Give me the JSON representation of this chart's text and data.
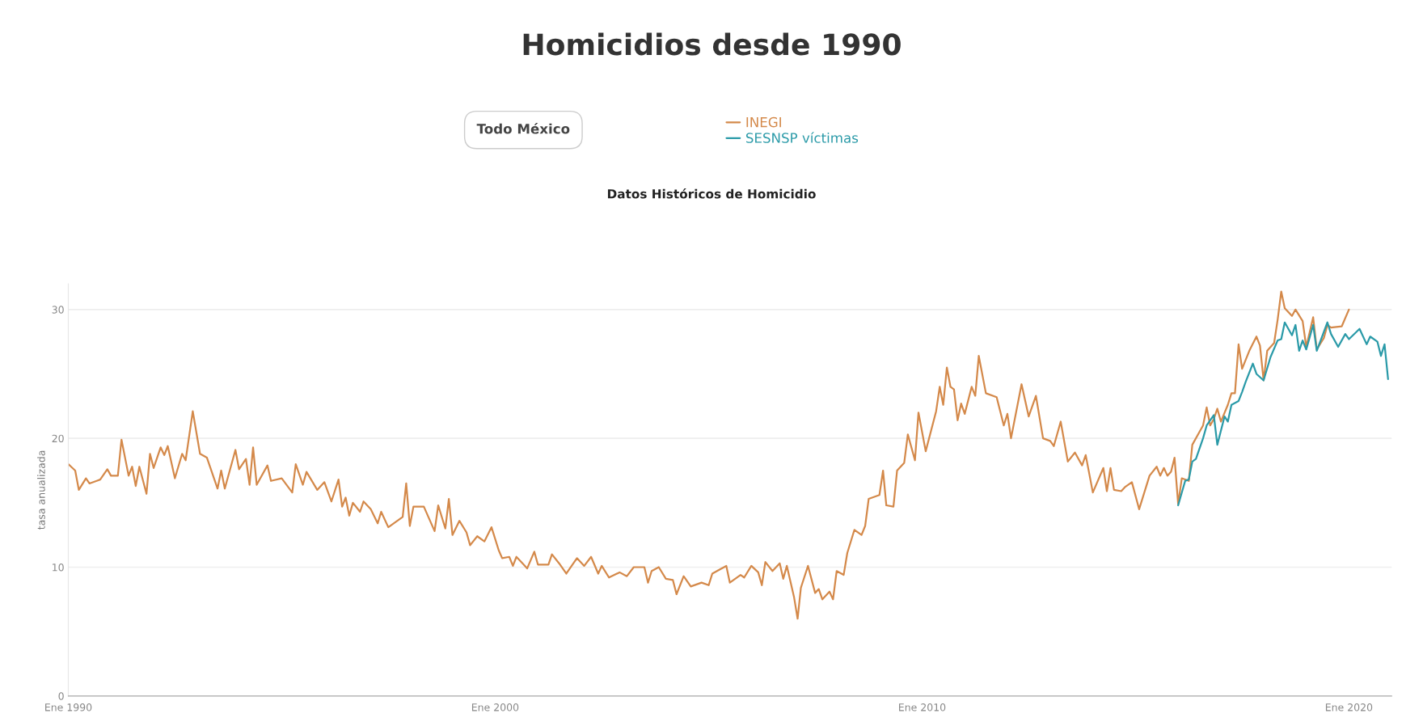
{
  "chart_data": {
    "type": "line",
    "title": "Homicidios desde 1990",
    "subtitle": "Datos Históricos de Homicidio",
    "ylabel": "tasa anualizada",
    "annotations": [
      "Todo México"
    ],
    "series": [
      {
        "name": "INEGI",
        "color": "#d4894a",
        "x": [
          "1990-01",
          "1990-03",
          "1990-04",
          "1990-06",
          "1990-07",
          "1990-09",
          "1990-10",
          "1990-12",
          "1991-01",
          "1991-03",
          "1991-04",
          "1991-06",
          "1991-07",
          "1991-08",
          "1991-09",
          "1991-11",
          "1991-12",
          "1992-01",
          "1992-03",
          "1992-04",
          "1992-05",
          "1992-07",
          "1992-09",
          "1992-10",
          "1992-12",
          "1993-02",
          "1993-04",
          "1993-07",
          "1993-08",
          "1993-09",
          "1993-12",
          "1994-01",
          "1994-03",
          "1994-04",
          "1994-05",
          "1994-06",
          "1994-09",
          "1994-10",
          "1995-01",
          "1995-04",
          "1995-05",
          "1995-07",
          "1995-08",
          "1995-11",
          "1996-01",
          "1996-03",
          "1996-05",
          "1996-06",
          "1996-07",
          "1996-08",
          "1996-09",
          "1996-11",
          "1996-12",
          "1997-02",
          "1997-04",
          "1997-05",
          "1997-07",
          "1997-11",
          "1997-12",
          "1998-01",
          "1998-02",
          "1998-05",
          "1998-08",
          "1998-09",
          "1998-11",
          "1998-12",
          "1999-01",
          "1999-03",
          "1999-05",
          "1999-06",
          "1999-08",
          "1999-10",
          "1999-12",
          "2000-02",
          "2000-03",
          "2000-05",
          "2000-06",
          "2000-07",
          "2000-09",
          "2000-10",
          "2000-12",
          "2001-01",
          "2001-04",
          "2001-05",
          "2001-07",
          "2001-09",
          "2001-11",
          "2001-12",
          "2002-02",
          "2002-04",
          "2002-06",
          "2002-07",
          "2002-09",
          "2002-12",
          "2003-02",
          "2003-04",
          "2003-07",
          "2003-08",
          "2003-09",
          "2003-11",
          "2004-01",
          "2004-03",
          "2004-04",
          "2004-06",
          "2004-08",
          "2004-11",
          "2005-01",
          "2005-02",
          "2005-04",
          "2005-06",
          "2005-07",
          "2005-10",
          "2005-11",
          "2006-01",
          "2006-03",
          "2006-04",
          "2006-05",
          "2006-07",
          "2006-09",
          "2006-10",
          "2006-11",
          "2007-01",
          "2007-02",
          "2007-03",
          "2007-05",
          "2007-07",
          "2007-08",
          "2007-09",
          "2007-11",
          "2007-12",
          "2008-01",
          "2008-03",
          "2008-04",
          "2008-06",
          "2008-08",
          "2008-09",
          "2008-10",
          "2009-01",
          "2009-02",
          "2009-03",
          "2009-05",
          "2009-06",
          "2009-08",
          "2009-09",
          "2009-11",
          "2009-12",
          "2010-02",
          "2010-05",
          "2010-06",
          "2010-07",
          "2010-08",
          "2010-09",
          "2010-10",
          "2010-11",
          "2010-12",
          "2011-01",
          "2011-03",
          "2011-04",
          "2011-05",
          "2011-07",
          "2011-10",
          "2011-12",
          "2012-01",
          "2012-02",
          "2012-05",
          "2012-07",
          "2012-09",
          "2012-11",
          "2013-01",
          "2013-02",
          "2013-04",
          "2013-06",
          "2013-08",
          "2013-10",
          "2013-11",
          "2014-01",
          "2014-04",
          "2014-05",
          "2014-06",
          "2014-07",
          "2014-09",
          "2014-10",
          "2014-12",
          "2015-02",
          "2015-05",
          "2015-07",
          "2015-08",
          "2015-09",
          "2015-10",
          "2015-11",
          "2015-12",
          "2016-01",
          "2016-02",
          "2016-04",
          "2016-05",
          "2016-07",
          "2016-08",
          "2016-09",
          "2016-10",
          "2016-11",
          "2016-12",
          "2017-01",
          "2017-03",
          "2017-04",
          "2017-05",
          "2017-06",
          "2017-07",
          "2017-09",
          "2017-11",
          "2017-12",
          "2018-01",
          "2018-02",
          "2018-04",
          "2018-05",
          "2018-06",
          "2018-07",
          "2018-09",
          "2018-10",
          "2018-12",
          "2019-01",
          "2019-03",
          "2019-04",
          "2019-06",
          "2019-07",
          "2019-08",
          "2019-11",
          "2020-01"
        ],
        "values": [
          18.0,
          17.5,
          16.0,
          16.9,
          16.5,
          16.7,
          16.8,
          17.6,
          17.1,
          17.1,
          19.9,
          17.1,
          17.8,
          16.3,
          17.8,
          15.7,
          18.8,
          17.7,
          19.3,
          18.7,
          19.4,
          16.9,
          18.8,
          18.3,
          22.1,
          18.8,
          18.5,
          16.1,
          17.5,
          16.1,
          19.1,
          17.6,
          18.4,
          16.4,
          19.3,
          16.4,
          17.9,
          16.7,
          16.9,
          15.8,
          18.0,
          16.4,
          17.4,
          16.0,
          16.6,
          15.1,
          16.8,
          14.7,
          15.4,
          14.0,
          15.0,
          14.3,
          15.1,
          14.5,
          13.4,
          14.3,
          13.1,
          13.9,
          16.5,
          13.2,
          14.7,
          14.7,
          12.8,
          14.8,
          13.0,
          15.3,
          12.5,
          13.6,
          12.7,
          11.7,
          12.4,
          12.0,
          13.1,
          11.3,
          10.7,
          10.8,
          10.1,
          10.8,
          10.2,
          9.9,
          11.2,
          10.2,
          10.2,
          11.0,
          10.3,
          9.5,
          10.3,
          10.7,
          10.1,
          10.8,
          9.5,
          10.1,
          9.2,
          9.6,
          9.3,
          10.0,
          10.0,
          8.8,
          9.7,
          10.0,
          9.1,
          9.0,
          7.9,
          9.3,
          8.5,
          8.8,
          8.6,
          9.5,
          9.8,
          10.1,
          8.8,
          9.4,
          9.2,
          10.1,
          9.6,
          8.6,
          10.4,
          9.7,
          10.3,
          9.1,
          10.1,
          7.7,
          6.0,
          8.4,
          10.1,
          8.0,
          8.3,
          7.5,
          8.1,
          7.5,
          9.7,
          9.4,
          11.1,
          12.9,
          12.5,
          13.2,
          15.3,
          15.6,
          17.5,
          14.8,
          14.7,
          17.5,
          18.1,
          20.3,
          18.3,
          22.0,
          19.0,
          22.1,
          24.0,
          22.6,
          25.5,
          24.0,
          23.8,
          21.4,
          22.7,
          21.9,
          24.0,
          23.3,
          26.4,
          23.5,
          23.2,
          21.0,
          21.9,
          20.0,
          24.2,
          21.7,
          23.3,
          20.0,
          19.8,
          19.4,
          21.3,
          18.2,
          18.9,
          17.9,
          18.7,
          15.8,
          17.7,
          15.9,
          17.7,
          16.0,
          15.9,
          16.2,
          16.6,
          14.5,
          17.1,
          17.8,
          17.1,
          17.7,
          17.1,
          17.4,
          18.5,
          14.9,
          16.9,
          16.7,
          19.5,
          20.5,
          21.0,
          22.4,
          21.0,
          21.5,
          22.3,
          21.3,
          22.6,
          23.5,
          23.5,
          27.3,
          25.4,
          26.8,
          27.9,
          27.2,
          24.5,
          26.8,
          27.4,
          29.2,
          31.4,
          30.1,
          29.5,
          30.0,
          29.1,
          27.1,
          29.4,
          26.9,
          27.8,
          28.8,
          28.6,
          28.7,
          30.0
        ]
      },
      {
        "name": "SESNSP víctimas",
        "color": "#2a9aa8",
        "x": [
          "2016-01",
          "2016-03",
          "2016-04",
          "2016-05",
          "2016-06",
          "2016-08",
          "2016-09",
          "2016-11",
          "2016-12",
          "2017-02",
          "2017-03",
          "2017-04",
          "2017-06",
          "2017-07",
          "2017-08",
          "2017-10",
          "2017-11",
          "2018-01",
          "2018-03",
          "2018-05",
          "2018-06",
          "2018-07",
          "2018-09",
          "2018-10",
          "2018-11",
          "2018-12",
          "2019-01",
          "2019-03",
          "2019-04",
          "2019-07",
          "2019-08",
          "2019-10",
          "2019-12",
          "2020-01",
          "2020-04",
          "2020-06",
          "2020-07",
          "2020-09",
          "2020-10",
          "2020-11",
          "2020-12"
        ],
        "values": [
          14.8,
          16.7,
          16.8,
          18.2,
          18.4,
          20.0,
          21.0,
          21.8,
          19.5,
          21.7,
          21.3,
          22.6,
          22.9,
          23.6,
          24.4,
          25.8,
          25.0,
          24.5,
          26.3,
          27.6,
          27.7,
          29.0,
          28.0,
          28.8,
          26.8,
          27.6,
          26.9,
          28.8,
          26.8,
          29.0,
          28.1,
          27.1,
          28.1,
          27.7,
          28.5,
          27.3,
          27.9,
          27.5,
          26.4,
          27.3,
          24.6
        ]
      }
    ],
    "xlim": [
      "1990-01",
      "2021-01"
    ],
    "xticks": [
      {
        "value": "1990-01",
        "label": "Ene 1990"
      },
      {
        "value": "2000-01",
        "label": "Ene 2000"
      },
      {
        "value": "2010-01",
        "label": "Ene 2010"
      },
      {
        "value": "2020-01",
        "label": "Ene 2020"
      }
    ],
    "ylim": [
      0,
      32
    ],
    "yticks": [
      0,
      10,
      20,
      30
    ],
    "grid": "y",
    "legend": "top",
    "marker": "none",
    "line_style": "solid"
  }
}
